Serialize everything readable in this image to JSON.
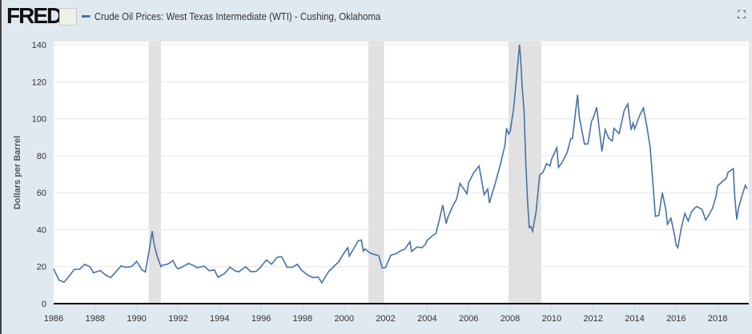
{
  "header": {
    "logo": "FRED",
    "fullscreen_icon": "fullscreen-icon"
  },
  "chart_data": {
    "type": "line",
    "title": "Crude Oil Prices: West Texas Intermediate (WTI) - Cushing, Oklahoma",
    "xlabel": "",
    "ylabel": "Dollars per Barrel",
    "xlim": [
      1986,
      2019.5
    ],
    "ylim": [
      0,
      140
    ],
    "yticks": [
      "0",
      "20",
      "40",
      "60",
      "80",
      "100",
      "120",
      "140"
    ],
    "xticks": [
      "1986",
      "1988",
      "1990",
      "1992",
      "1994",
      "1996",
      "1998",
      "2000",
      "2002",
      "2004",
      "2006",
      "2008",
      "2010",
      "2012",
      "2014",
      "2016",
      "2018"
    ],
    "grid": "horizontal",
    "line_color": "#4572a7",
    "recession_color": "#e1e1e1",
    "recessions": [
      [
        1990.58,
        1991.17
      ],
      [
        2001.17,
        2001.92
      ],
      [
        2007.92,
        2009.5
      ]
    ],
    "series": [
      {
        "name": "Crude Oil Prices: West Texas Intermediate (WTI) - Cushing, Oklahoma",
        "points": [
          [
            1986,
            18.8
          ],
          [
            1986.25,
            12.8
          ],
          [
            1986.5,
            11.6
          ],
          [
            1986.75,
            14.9
          ],
          [
            1987,
            18.6
          ],
          [
            1987.25,
            18.6
          ],
          [
            1987.5,
            21.3
          ],
          [
            1987.75,
            19.9
          ],
          [
            1987.92,
            16.7
          ],
          [
            1988.25,
            17.9
          ],
          [
            1988.5,
            15.5
          ],
          [
            1988.75,
            14.1
          ],
          [
            1988.92,
            16.3
          ],
          [
            1989.25,
            20.4
          ],
          [
            1989.5,
            19.6
          ],
          [
            1989.75,
            20.1
          ],
          [
            1989.92,
            21.8
          ],
          [
            1990,
            22.9
          ],
          [
            1990.25,
            18.4
          ],
          [
            1990.42,
            17.1
          ],
          [
            1990.58,
            27.3
          ],
          [
            1990.75,
            39.2
          ],
          [
            1990.83,
            33
          ],
          [
            1990.92,
            28.5
          ],
          [
            1991,
            25.2
          ],
          [
            1991.17,
            20
          ],
          [
            1991.25,
            20.8
          ],
          [
            1991.5,
            21.4
          ],
          [
            1991.75,
            23.3
          ],
          [
            1991.92,
            19.5
          ],
          [
            1992,
            18.8
          ],
          [
            1992.25,
            20.2
          ],
          [
            1992.5,
            21.7
          ],
          [
            1992.75,
            20.6
          ],
          [
            1992.92,
            19.4
          ],
          [
            1993.25,
            20.3
          ],
          [
            1993.5,
            17.8
          ],
          [
            1993.75,
            18.2
          ],
          [
            1993.92,
            14.2
          ],
          [
            1994.25,
            16.4
          ],
          [
            1994.5,
            19.7
          ],
          [
            1994.75,
            17.7
          ],
          [
            1994.92,
            17.2
          ],
          [
            1995.25,
            19.9
          ],
          [
            1995.5,
            17.3
          ],
          [
            1995.75,
            17.4
          ],
          [
            1995.92,
            19
          ],
          [
            1996.25,
            23.6
          ],
          [
            1996.5,
            21.3
          ],
          [
            1996.75,
            24.9
          ],
          [
            1996.92,
            25.4
          ],
          [
            1997,
            25.2
          ],
          [
            1997.25,
            19.7
          ],
          [
            1997.5,
            19.7
          ],
          [
            1997.75,
            21.3
          ],
          [
            1997.92,
            18.3
          ],
          [
            1998.25,
            15.4
          ],
          [
            1998.5,
            14.1
          ],
          [
            1998.75,
            14.4
          ],
          [
            1998.92,
            11.3
          ],
          [
            1999.25,
            17.3
          ],
          [
            1999.5,
            20.1
          ],
          [
            1999.75,
            22.8
          ],
          [
            1999.92,
            26.1
          ],
          [
            2000.17,
            30.3
          ],
          [
            2000.25,
            25.7
          ],
          [
            2000.5,
            30.5
          ],
          [
            2000.67,
            33.9
          ],
          [
            2000.83,
            34.4
          ],
          [
            2000.92,
            28.4
          ],
          [
            2001,
            29.6
          ],
          [
            2001.25,
            27.4
          ],
          [
            2001.5,
            26.5
          ],
          [
            2001.67,
            25.9
          ],
          [
            2001.83,
            19.4
          ],
          [
            2001.92,
            19.3
          ],
          [
            2002,
            19.7
          ],
          [
            2002.25,
            26.2
          ],
          [
            2002.5,
            27
          ],
          [
            2002.75,
            28.8
          ],
          [
            2002.92,
            29.4
          ],
          [
            2003.17,
            33.5
          ],
          [
            2003.25,
            28.2
          ],
          [
            2003.5,
            30.6
          ],
          [
            2003.75,
            30.3
          ],
          [
            2003.92,
            32.1
          ],
          [
            2004,
            34.3
          ],
          [
            2004.25,
            36.7
          ],
          [
            2004.42,
            38
          ],
          [
            2004.58,
            44.9
          ],
          [
            2004.75,
            53.3
          ],
          [
            2004.92,
            43.3
          ],
          [
            2005,
            46.8
          ],
          [
            2005.25,
            53.2
          ],
          [
            2005.42,
            56.5
          ],
          [
            2005.58,
            65
          ],
          [
            2005.75,
            62.3
          ],
          [
            2005.92,
            59.4
          ],
          [
            2006,
            65.5
          ],
          [
            2006.25,
            70.9
          ],
          [
            2006.5,
            74.4
          ],
          [
            2006.75,
            58.9
          ],
          [
            2006.92,
            62
          ],
          [
            2007,
            54.5
          ],
          [
            2007.25,
            63.9
          ],
          [
            2007.5,
            74.1
          ],
          [
            2007.75,
            85.8
          ],
          [
            2007.83,
            94.8
          ],
          [
            2007.92,
            91.7
          ],
          [
            2008,
            93
          ],
          [
            2008.17,
            105.5
          ],
          [
            2008.33,
            125.4
          ],
          [
            2008.45,
            140
          ],
          [
            2008.5,
            133.4
          ],
          [
            2008.58,
            116.7
          ],
          [
            2008.67,
            104.1
          ],
          [
            2008.75,
            76.6
          ],
          [
            2008.83,
            57.3
          ],
          [
            2008.92,
            41.1
          ],
          [
            2009,
            41.7
          ],
          [
            2009.08,
            39.1
          ],
          [
            2009.25,
            49.7
          ],
          [
            2009.42,
            69.6
          ],
          [
            2009.58,
            71
          ],
          [
            2009.75,
            75.7
          ],
          [
            2009.92,
            74.5
          ],
          [
            2010,
            78.3
          ],
          [
            2010.25,
            84.3
          ],
          [
            2010.33,
            73.7
          ],
          [
            2010.5,
            76.3
          ],
          [
            2010.75,
            81.9
          ],
          [
            2010.92,
            89.2
          ],
          [
            2011,
            89.2
          ],
          [
            2011.25,
            113
          ],
          [
            2011.33,
            101
          ],
          [
            2011.58,
            86.3
          ],
          [
            2011.75,
            86.4
          ],
          [
            2011.92,
            98.6
          ],
          [
            2012,
            100.3
          ],
          [
            2012.17,
            106.2
          ],
          [
            2012.42,
            82.3
          ],
          [
            2012.58,
            94.1
          ],
          [
            2012.75,
            89.5
          ],
          [
            2012.92,
            87.9
          ],
          [
            2013,
            94.8
          ],
          [
            2013.25,
            92
          ],
          [
            2013.5,
            104.6
          ],
          [
            2013.67,
            108
          ],
          [
            2013.83,
            93.9
          ],
          [
            2013.92,
            97.6
          ],
          [
            2014,
            94.6
          ],
          [
            2014.25,
            102
          ],
          [
            2014.42,
            105.8
          ],
          [
            2014.58,
            96.5
          ],
          [
            2014.75,
            84.4
          ],
          [
            2014.92,
            59.3
          ],
          [
            2015,
            47.2
          ],
          [
            2015.17,
            47.8
          ],
          [
            2015.33,
            60
          ],
          [
            2015.5,
            50.9
          ],
          [
            2015.58,
            42.9
          ],
          [
            2015.75,
            46.2
          ],
          [
            2015.92,
            37.2
          ],
          [
            2016,
            31.7
          ],
          [
            2016.08,
            30.3
          ],
          [
            2016.25,
            41.1
          ],
          [
            2016.42,
            48.8
          ],
          [
            2016.58,
            44.7
          ],
          [
            2016.75,
            49.8
          ],
          [
            2016.92,
            52
          ],
          [
            2017,
            52.5
          ],
          [
            2017.25,
            51
          ],
          [
            2017.42,
            45.2
          ],
          [
            2017.58,
            48
          ],
          [
            2017.75,
            51.6
          ],
          [
            2017.92,
            58
          ],
          [
            2018,
            63.7
          ],
          [
            2018.25,
            66.3
          ],
          [
            2018.42,
            67.9
          ],
          [
            2018.5,
            71
          ],
          [
            2018.75,
            73
          ],
          [
            2018.83,
            57
          ],
          [
            2018.92,
            45.5
          ],
          [
            2019,
            51.4
          ],
          [
            2019.17,
            58.2
          ],
          [
            2019.33,
            63.9
          ],
          [
            2019.42,
            62
          ]
        ]
      }
    ]
  }
}
